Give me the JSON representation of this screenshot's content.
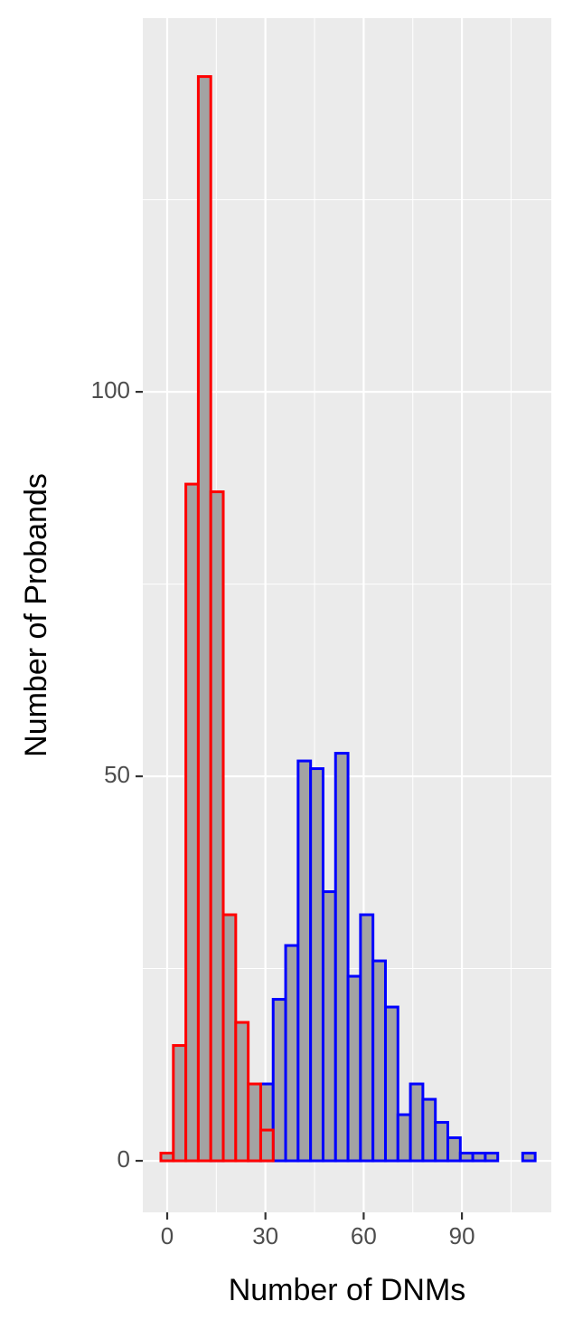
{
  "chart_data": {
    "type": "histogram",
    "x_label": "Number of DNMs",
    "y_label": "Number of Probands",
    "bins": [
      -1.93,
      1.88,
      5.69,
      9.5,
      13.31,
      17.12,
      20.93,
      24.74,
      28.55,
      32.36,
      36.17,
      39.98,
      43.79,
      47.6,
      51.41,
      55.22,
      59.03,
      62.84,
      66.65,
      70.46,
      74.27,
      78.08,
      81.89,
      85.7,
      89.51,
      93.32,
      97.13,
      100.94,
      104.75,
      108.56,
      112.37
    ],
    "fill": "#a3a3a3",
    "series": [
      {
        "color": "#0000ff",
        "values": [
          0,
          0,
          0,
          0,
          1,
          0,
          0,
          7,
          10,
          21,
          28,
          52,
          51,
          35,
          53,
          24,
          32,
          26,
          20,
          6,
          10,
          8,
          5,
          3,
          1,
          1,
          1,
          0,
          0,
          1
        ]
      },
      {
        "color": "#ff0000",
        "values": [
          1,
          15,
          88,
          141,
          87,
          32,
          18,
          10,
          4,
          0,
          0,
          0,
          0,
          0,
          0,
          0,
          0,
          0,
          0,
          0,
          0,
          0,
          0,
          0,
          0,
          0,
          0,
          0,
          0,
          0
        ]
      }
    ],
    "xlim": [
      -7.45,
      117.3
    ],
    "xticks": [
      0,
      30,
      60,
      90
    ],
    "xminor": [
      15,
      45,
      75,
      105
    ],
    "ylim": [
      -6.7,
      148.6
    ],
    "yticks": [
      0,
      50,
      100
    ],
    "yminor": [
      25,
      75,
      125
    ],
    "grid": true
  }
}
